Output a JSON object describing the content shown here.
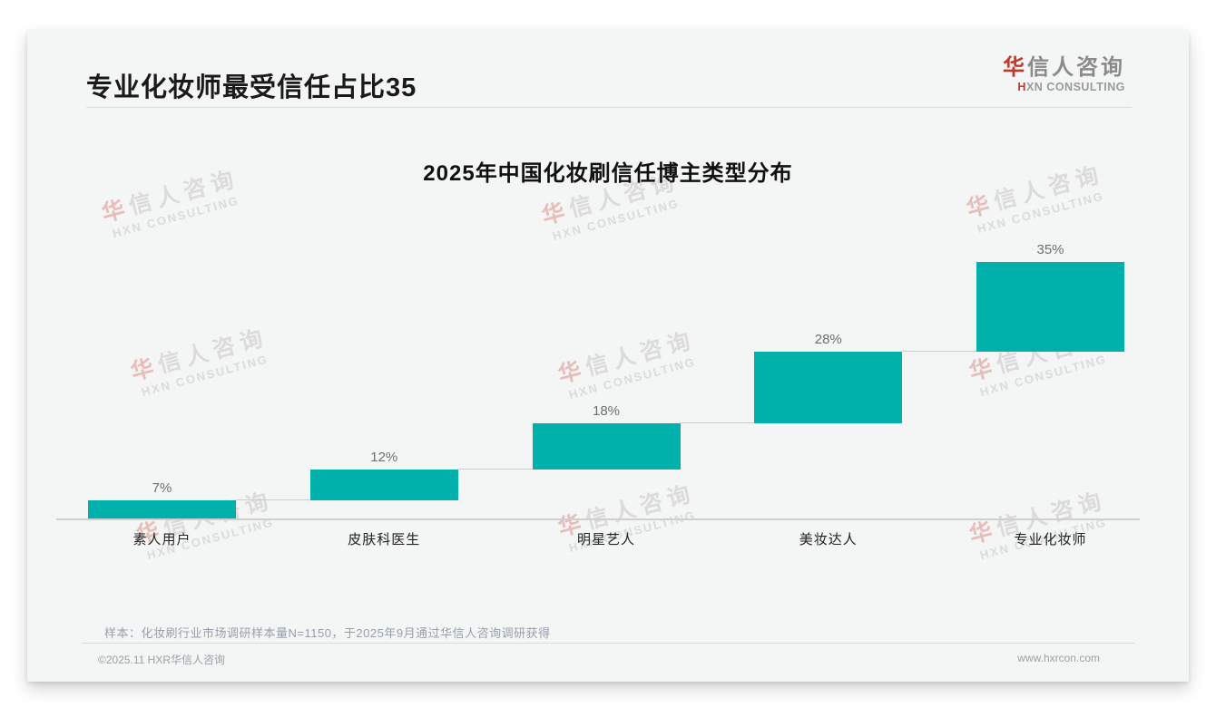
{
  "header": {
    "title": "专业化妆师最受信任占比35"
  },
  "logo": {
    "cn_first": "华",
    "cn_rest": "信人咨询",
    "en_first": "H",
    "en_rest": "XN CONSULTING",
    "accent_color": "#c0392b",
    "gray_color": "#8a8a8a"
  },
  "chart_data": {
    "type": "bar",
    "subtype": "waterfall-cumulative",
    "title": "2025年中国化妆刷信任博主类型分布",
    "categories": [
      "素人用户",
      "皮肤科医生",
      "明星艺人",
      "美妆达人",
      "专业化妆师"
    ],
    "values": [
      7,
      12,
      18,
      28,
      35
    ],
    "labels": [
      "7%",
      "12%",
      "18%",
      "28%",
      "35%"
    ],
    "cumulative_ends": [
      7,
      19,
      37,
      65,
      100
    ],
    "unit": "%",
    "ylim": [
      0,
      100
    ],
    "bar_color": "#00b1ab",
    "connector_color": "#cccccc",
    "value_label_color": "#6e6e6e",
    "grid": false,
    "legend": false
  },
  "note": {
    "text": "样本：化妆刷行业市场调研样本量N=1150，于2025年9月通过华信人咨询调研获得"
  },
  "footer": {
    "copyright": "©2025.11 HXR华信人咨询",
    "website": "www.hxrcon.com"
  },
  "watermark": {
    "line1_first": "华",
    "line1_rest": "信人咨询",
    "line2": "HXN CONSULTING"
  }
}
